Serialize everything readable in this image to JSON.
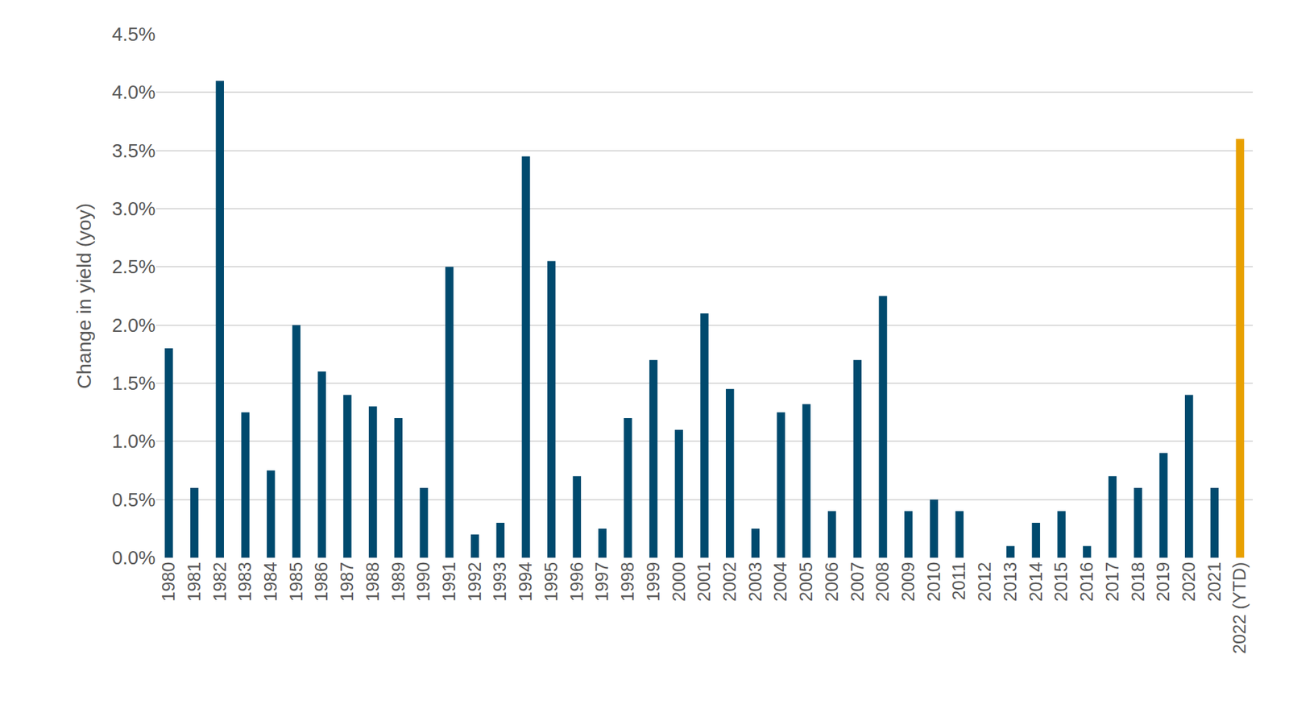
{
  "chart_data": {
    "type": "bar",
    "y_label": "Change in yield (yoy)",
    "categories": [
      "1980",
      "1981",
      "1982",
      "1983",
      "1984",
      "1985",
      "1986",
      "1987",
      "1988",
      "1989",
      "1990",
      "1991",
      "1992",
      "1993",
      "1994",
      "1995",
      "1996",
      "1997",
      "1998",
      "1999",
      "2000",
      "2001",
      "2002",
      "2003",
      "2004",
      "2005",
      "2006",
      "2007",
      "2008",
      "2009",
      "2010",
      "2011",
      "2012",
      "2013",
      "2014",
      "2015",
      "2016",
      "2017",
      "2018",
      "2019",
      "2020",
      "2021",
      "2022 (YTD)"
    ],
    "values": [
      1.8,
      0.6,
      4.1,
      1.25,
      0.75,
      2.0,
      1.6,
      1.4,
      1.3,
      1.2,
      0.6,
      2.5,
      0.2,
      0.3,
      3.45,
      2.55,
      0.7,
      0.25,
      1.2,
      1.7,
      1.1,
      2.1,
      1.45,
      0.25,
      1.25,
      1.32,
      0.4,
      1.7,
      2.25,
      0.4,
      0.5,
      0.4,
      0,
      0.1,
      0.3,
      0.4,
      0.1,
      0.7,
      0.6,
      0.9,
      1.4,
      0.6,
      3.6
    ],
    "colors": [
      "#004a6e",
      "#004a6e",
      "#004a6e",
      "#004a6e",
      "#004a6e",
      "#004a6e",
      "#004a6e",
      "#004a6e",
      "#004a6e",
      "#004a6e",
      "#004a6e",
      "#004a6e",
      "#004a6e",
      "#004a6e",
      "#004a6e",
      "#004a6e",
      "#004a6e",
      "#004a6e",
      "#004a6e",
      "#004a6e",
      "#004a6e",
      "#004a6e",
      "#004a6e",
      "#004a6e",
      "#004a6e",
      "#004a6e",
      "#004a6e",
      "#004a6e",
      "#004a6e",
      "#004a6e",
      "#004a6e",
      "#004a6e",
      "#004a6e",
      "#004a6e",
      "#004a6e",
      "#004a6e",
      "#004a6e",
      "#004a6e",
      "#004a6e",
      "#004a6e",
      "#004a6e",
      "#004a6e",
      "#e8a000"
    ],
    "ylim": [
      0,
      4.5
    ],
    "yticks": [
      {
        "value": 0,
        "label": "0.0%"
      },
      {
        "value": 0.5,
        "label": "0.5%"
      },
      {
        "value": 1,
        "label": "1.0%"
      },
      {
        "value": 1.5,
        "label": "1.5%"
      },
      {
        "value": 2,
        "label": "2.0%"
      },
      {
        "value": 2.5,
        "label": "2.5%"
      },
      {
        "value": 3,
        "label": "3.0%"
      },
      {
        "value": 3.5,
        "label": "3.5%"
      },
      {
        "value": 4,
        "label": "4.0%"
      },
      {
        "value": 4.5,
        "label": "4.5%"
      }
    ],
    "grid": true
  }
}
